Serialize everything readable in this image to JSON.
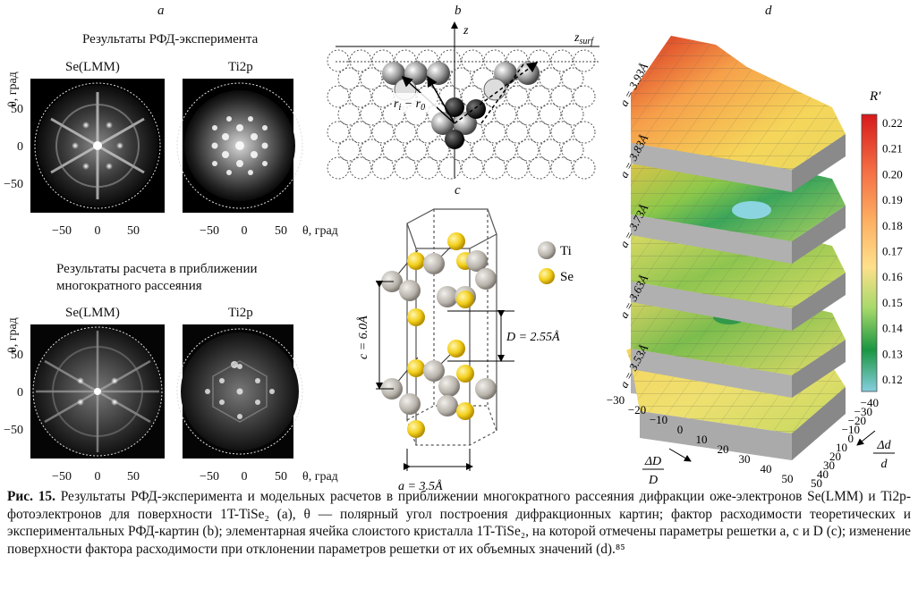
{
  "panels": {
    "a": "a",
    "b": "b",
    "c": "c",
    "d": "d"
  },
  "panel_a": {
    "exp_title": "Результаты РФД-эксперимента",
    "calc_title_line1": "Результаты расчета в приближении",
    "calc_title_line2": "многократного рассеяния",
    "se_label": "Se(LMM)",
    "ti_label": "Ti2p",
    "y_axis_label": "θ, град",
    "x_axis_label": "θ, град",
    "ticks": [
      "−50",
      "0",
      "50"
    ],
    "yticks": [
      "50",
      "0",
      "−50"
    ]
  },
  "panel_b": {
    "z_label": "z",
    "zsurf_label": "z",
    "zsurf_sub": "surf",
    "r_label": "r",
    "r_sub_i": "i",
    "r_minus": " − r",
    "r_sub_0": "0"
  },
  "panel_c": {
    "ti_legend": "Ti",
    "se_legend": "Se",
    "c_label": "c = 6.0Å",
    "D_label": "D = 2.55Å",
    "a_label": "a = 3.5Å"
  },
  "panel_d": {
    "layers": [
      "a = 3.93Å",
      "a = 3.83Å",
      "a = 3.73Å",
      "a = 3.63Å",
      "a = 3.53Å"
    ],
    "colorbar_title": "R′",
    "colorbar_ticks": [
      "0.22",
      "0.21",
      "0.20",
      "0.19",
      "0.18",
      "0.17",
      "0.16",
      "0.15",
      "0.14",
      "0.13",
      "0.12"
    ],
    "x_ticks": [
      "−30",
      "−20",
      "−10",
      "0",
      "10",
      "20",
      "30",
      "40",
      "50"
    ],
    "y_ticks": [
      "−40",
      "−30",
      "−20",
      "−10",
      "0",
      "10",
      "20",
      "30",
      "40",
      "50"
    ],
    "x_label_num": "ΔD",
    "x_label_den": "D",
    "y_label_num": "Δd",
    "y_label_den": "d"
  },
  "caption": {
    "fig_label": "Рис. 15.",
    "text": "Результаты РФД-эксперимента и модельных расчетов в приближении многократного рассеяния дифракции оже-электронов Se(LMM) и Ti2p-фотоэлектронов для поверхности 1T-TiSe₂ (a), θ — полярный угол построения дифракционных картин; фактор расходимости теоретических и экспериментальных РФД-картин (b); элементарная ячейка слоистого кристалла 1T-TiSe₂, на которой отмечены параметры решетки a, c и D (c); изменение поверхности фактора расходимости при отклонении параметров решетки от их объемных значений (d).⁸⁵"
  }
}
